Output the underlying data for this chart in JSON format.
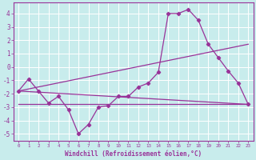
{
  "title": "",
  "xlabel": "Windchill (Refroidissement éolien,°C)",
  "ylabel": "",
  "bg_color": "#c8ecec",
  "line_color": "#993399",
  "grid_color": "#ffffff",
  "xlim": [
    -0.5,
    23.5
  ],
  "ylim": [
    -5.5,
    4.8
  ],
  "xticks": [
    0,
    1,
    2,
    3,
    4,
    5,
    6,
    7,
    8,
    9,
    10,
    11,
    12,
    13,
    14,
    15,
    16,
    17,
    18,
    19,
    20,
    21,
    22,
    23
  ],
  "yticks": [
    -5,
    -4,
    -3,
    -2,
    -1,
    0,
    1,
    2,
    3,
    4
  ],
  "line1_x": [
    0,
    1,
    2,
    3,
    4,
    5,
    6,
    7,
    8,
    9,
    10,
    11,
    12,
    13,
    14,
    15,
    16,
    17,
    18,
    19,
    20,
    21,
    22,
    23
  ],
  "line1_y": [
    -1.8,
    -0.9,
    -1.8,
    -2.7,
    -2.2,
    -3.2,
    -5.0,
    -4.3,
    -3.0,
    -2.9,
    -2.2,
    -2.2,
    -1.5,
    -1.2,
    -0.4,
    4.0,
    4.0,
    4.3,
    3.5,
    1.7,
    0.7,
    -0.3,
    -1.2,
    -2.8
  ],
  "line2_x": [
    0,
    23
  ],
  "line2_y": [
    -2.8,
    -2.8
  ],
  "line3_x": [
    0,
    23
  ],
  "line3_y": [
    -1.8,
    1.7
  ],
  "line4_x": [
    0,
    23
  ],
  "line4_y": [
    -1.8,
    -2.8
  ]
}
